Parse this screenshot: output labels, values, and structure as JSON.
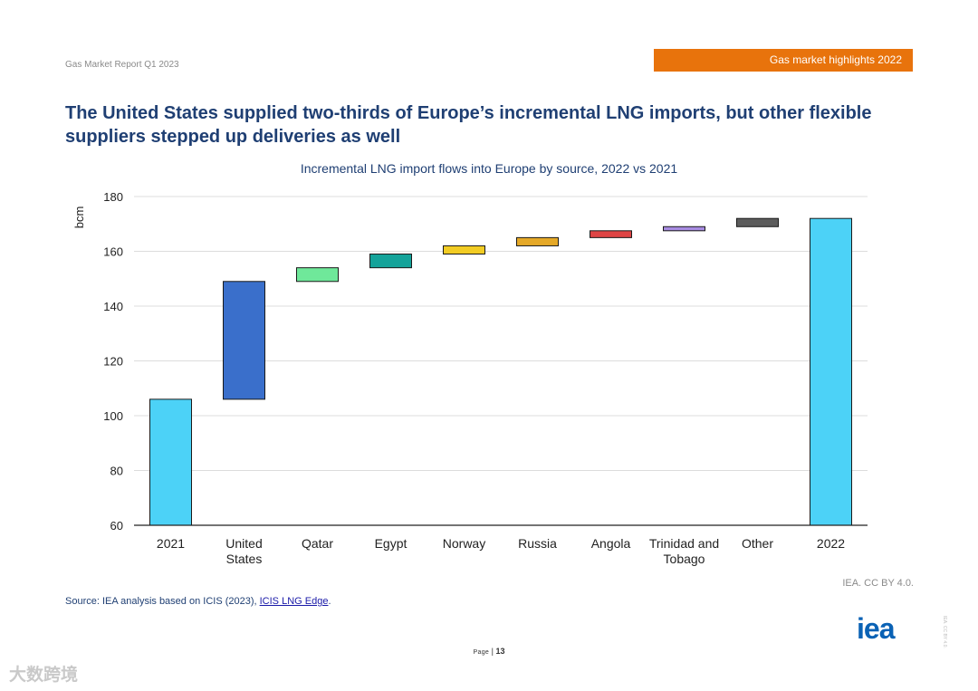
{
  "header": {
    "report_name": "Gas Market Report Q1 2023",
    "section_tag": "Gas market highlights 2022",
    "section_tag_color": "#e8730c"
  },
  "title": "The United States supplied two-thirds of Europe’s incremental LNG imports, but other flexible suppliers stepped up deliveries as well",
  "chart_data": {
    "type": "waterfall",
    "title": "Incremental LNG import flows into Europe by source, 2022 vs 2021",
    "ylabel": "bcm",
    "ylim": [
      60,
      180
    ],
    "yticks": [
      60,
      80,
      100,
      120,
      140,
      160,
      180
    ],
    "grid": true,
    "bars": [
      {
        "label": "2021",
        "kind": "total",
        "start": 60,
        "end": 106,
        "color": "#4cd2f7"
      },
      {
        "label": "United States",
        "kind": "delta",
        "start": 106,
        "end": 149,
        "color": "#3a6fcb"
      },
      {
        "label": "Qatar",
        "kind": "delta",
        "start": 149,
        "end": 154,
        "color": "#6fe89a"
      },
      {
        "label": "Egypt",
        "kind": "delta",
        "start": 154,
        "end": 159,
        "color": "#14a39a"
      },
      {
        "label": "Norway",
        "kind": "delta",
        "start": 159,
        "end": 162,
        "color": "#f2cc24"
      },
      {
        "label": "Russia",
        "kind": "delta",
        "start": 162,
        "end": 165,
        "color": "#e5a928"
      },
      {
        "label": "Angola",
        "kind": "delta",
        "start": 165,
        "end": 167.5,
        "color": "#de4545"
      },
      {
        "label": "Trinidad and Tobago",
        "kind": "delta",
        "start": 167.5,
        "end": 169,
        "color": "#a88ce2"
      },
      {
        "label": "Other",
        "kind": "delta",
        "start": 169,
        "end": 172,
        "color": "#5c5c5c"
      },
      {
        "label": "2022",
        "kind": "total",
        "start": 60,
        "end": 172,
        "color": "#4cd2f7"
      }
    ]
  },
  "credit": "IEA. CC BY 4.0.",
  "source": {
    "prefix": "Source: IEA analysis based on ICIS (2023), ",
    "link_text": "ICIS LNG Edge",
    "suffix": "."
  },
  "footer": {
    "page_word": "Page",
    "separator": " | ",
    "page_number": "13",
    "logo": "iea",
    "side_note": "IEA. CC BY 4.0.",
    "watermark": "大数跨境"
  }
}
